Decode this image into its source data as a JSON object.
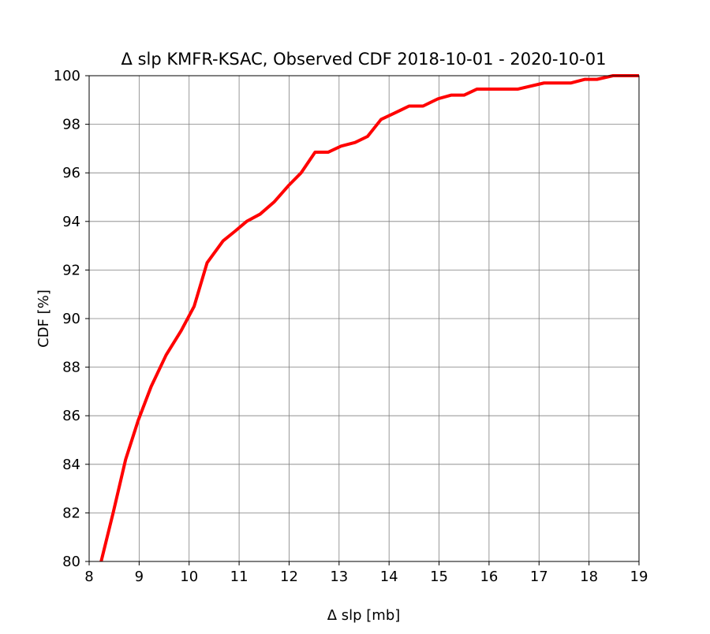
{
  "colors": {
    "line": "#ff0000",
    "grid": "#808080",
    "axis": "#000000",
    "background": "#ffffff"
  },
  "chart_data": {
    "type": "line",
    "title": "Δ slp KMFR-KSAC, Observed CDF 2018-10-01 - 2020-10-01",
    "xlabel": "Δ slp [mb]",
    "ylabel": "CDF [%]",
    "xlim": [
      8,
      19
    ],
    "ylim": [
      80,
      100
    ],
    "xticks": [
      "8",
      "9",
      "10",
      "11",
      "12",
      "13",
      "14",
      "15",
      "16",
      "17",
      "18",
      "19"
    ],
    "yticks": [
      "80",
      "82",
      "84",
      "86",
      "88",
      "90",
      "92",
      "94",
      "96",
      "98",
      "100"
    ],
    "grid": true,
    "series": [
      {
        "x": [
          8.24,
          8.48,
          8.73,
          8.98,
          9.24,
          9.54,
          9.84,
          10.1,
          10.36,
          10.68,
          10.92,
          11.15,
          11.42,
          11.7,
          12.0,
          12.24,
          12.52,
          12.78,
          13.04,
          13.32,
          13.57,
          13.84,
          14.1,
          14.4,
          14.68,
          14.98,
          15.24,
          15.5,
          15.76,
          16.04,
          16.58,
          17.1,
          17.64,
          17.92,
          18.16,
          18.48,
          19.0
        ],
        "y": [
          80.0,
          82.0,
          84.2,
          85.8,
          87.2,
          88.5,
          89.5,
          90.5,
          92.3,
          93.2,
          93.6,
          94.0,
          94.3,
          94.8,
          95.5,
          96.0,
          96.85,
          96.85,
          97.1,
          97.25,
          97.5,
          98.2,
          98.45,
          98.75,
          98.75,
          99.05,
          99.2,
          99.2,
          99.45,
          99.45,
          99.45,
          99.7,
          99.7,
          99.85,
          99.85,
          100.0,
          100.0
        ]
      }
    ]
  }
}
